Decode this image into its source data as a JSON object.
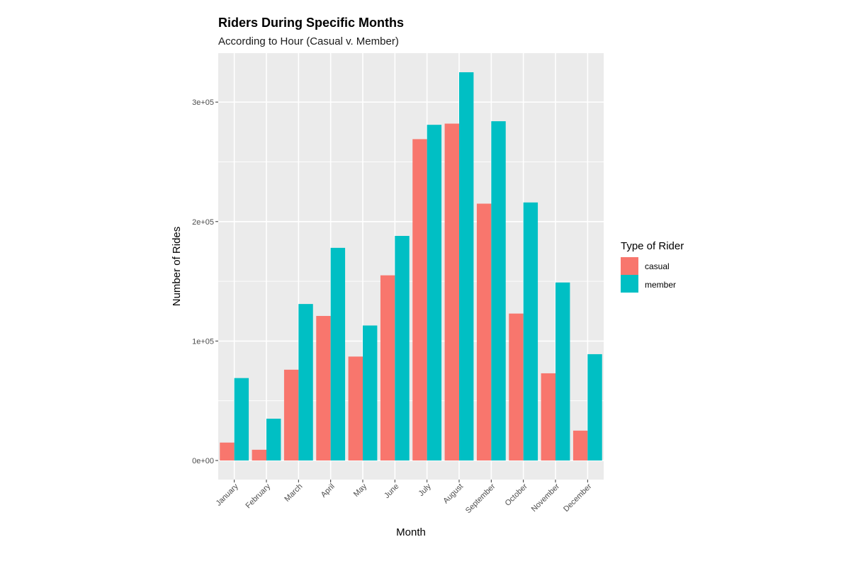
{
  "chart_data": {
    "type": "bar",
    "title": "Riders During Specific Months",
    "subtitle": "According to Hour (Casual v. Member)",
    "xlabel": "Month",
    "ylabel": "Number of Rides",
    "categories": [
      "January",
      "February",
      "March",
      "April",
      "May",
      "June",
      "July",
      "August",
      "September",
      "October",
      "November",
      "December"
    ],
    "series": [
      {
        "name": "casual",
        "color": "#F8766D",
        "values": [
          15000,
          9000,
          76000,
          121000,
          87000,
          155000,
          269000,
          282000,
          215000,
          123000,
          73000,
          25000
        ]
      },
      {
        "name": "member",
        "color": "#00BFC4",
        "values": [
          69000,
          35000,
          131000,
          178000,
          113000,
          188000,
          281000,
          325000,
          284000,
          216000,
          149000,
          89000
        ]
      }
    ],
    "ylim": [
      -16000,
      341000
    ],
    "yticks": [
      0,
      100000,
      200000,
      300000
    ],
    "ytick_labels": [
      "0e+00",
      "1e+05",
      "2e+05",
      "3e+05"
    ],
    "legend": {
      "title": "Type of Rider",
      "position": "right"
    },
    "grid": true
  }
}
